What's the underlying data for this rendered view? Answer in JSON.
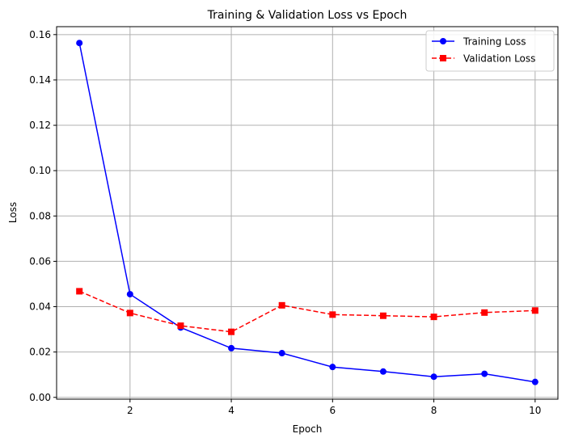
{
  "chart_data": {
    "type": "line",
    "title": "Training & Validation Loss vs Epoch",
    "xlabel": "Epoch",
    "ylabel": "Loss",
    "x": [
      1,
      2,
      3,
      4,
      5,
      6,
      7,
      8,
      9,
      10
    ],
    "xlim": [
      0.55,
      10.45
    ],
    "ylim": [
      -0.0008,
      0.1635
    ],
    "xticks": [
      2,
      4,
      6,
      8,
      10
    ],
    "yticks": [
      "0.00",
      "0.02",
      "0.04",
      "0.06",
      "0.08",
      "0.10",
      "0.12",
      "0.14",
      "0.16"
    ],
    "grid": true,
    "legend_position": "top-right",
    "series": [
      {
        "name": "Training Loss",
        "values": [
          0.1563,
          0.0455,
          0.0308,
          0.0217,
          0.0195,
          0.0134,
          0.0114,
          0.0091,
          0.0104,
          0.0068
        ],
        "color": "#0000ff",
        "linestyle": "solid",
        "marker": "circle"
      },
      {
        "name": "Validation Loss",
        "values": [
          0.0468,
          0.0372,
          0.0316,
          0.0289,
          0.0406,
          0.0365,
          0.036,
          0.0355,
          0.0374,
          0.0383
        ],
        "color": "#ff0000",
        "linestyle": "dashed",
        "marker": "square"
      }
    ]
  }
}
